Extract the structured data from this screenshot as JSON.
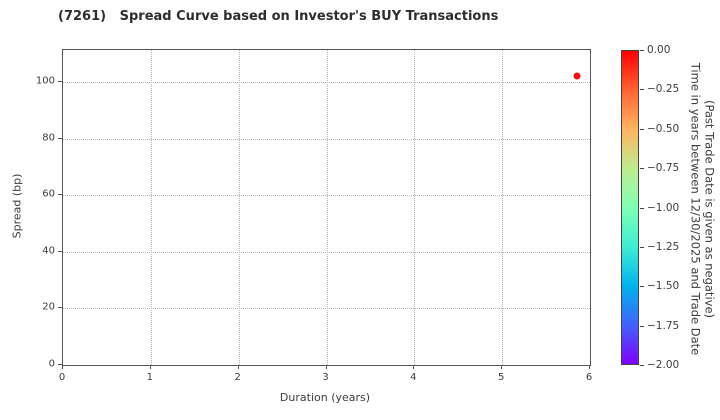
{
  "chart_data": {
    "type": "scatter",
    "title": "(7261)   Spread Curve based on Investor's BUY Transactions",
    "xlabel": "Duration (years)",
    "ylabel": "Spread (bp)",
    "xlim": [
      0,
      6
    ],
    "ylim": [
      0,
      111.5
    ],
    "xticks": [
      0,
      1,
      2,
      3,
      4,
      5,
      6
    ],
    "yticks": [
      0,
      20,
      40,
      60,
      80,
      100
    ],
    "grid": {
      "enabled": true,
      "style": "dotted",
      "color": "#b5b5b5"
    },
    "points": [
      {
        "x": 5.86,
        "y": 102,
        "color_value": 0.0,
        "color": "#fa0f0f"
      }
    ],
    "colorbar": {
      "label_lines": [
        "Time in years between 12/30/2025 and Trade Date",
        "(Past Trade Date is given as negative)"
      ],
      "vmax": 0.0,
      "vmin": -2.0,
      "tick_labels": [
        "0.00",
        "−0.25",
        "−0.50",
        "−0.75",
        "−1.00",
        "−1.25",
        "−1.50",
        "−1.75",
        "−2.00"
      ],
      "colormap": "rainbow-reversed",
      "gradient_stops": [
        "#ff0000",
        "#ff6232",
        "#ffb462",
        "#bfec8e",
        "#80ffb4",
        "#40ecd4",
        "#00b4ec",
        "#4062fa",
        "#8000ff"
      ]
    }
  }
}
